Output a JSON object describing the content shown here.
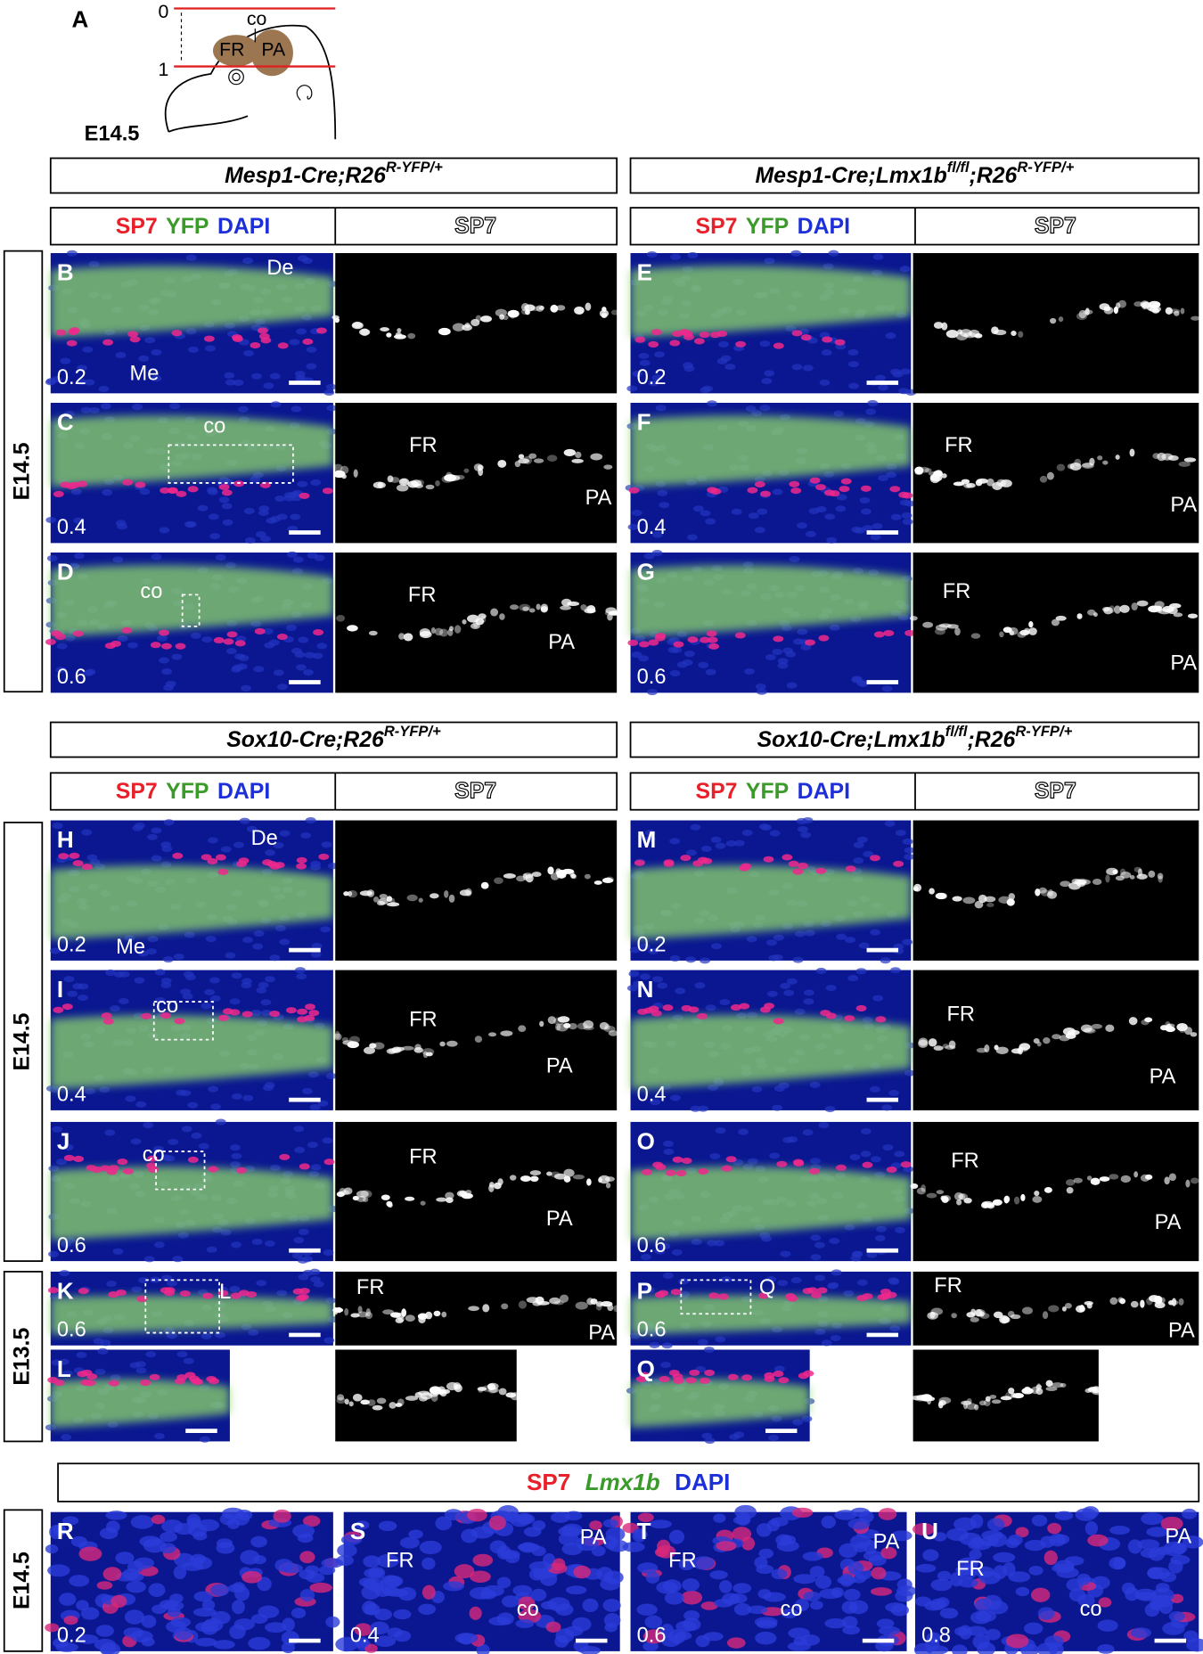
{
  "panel_a": {
    "letter": "A",
    "axis": [
      "0",
      "1"
    ],
    "labels": [
      "co",
      "FR",
      "PA"
    ],
    "stage": "E14.5"
  },
  "genotype_headers": [
    [
      {
        "text": "Mesp1-Cre;R26"
      },
      {
        "text": "R-YFP/+",
        "sup": true
      }
    ],
    [
      {
        "text": "Mesp1-Cre;Lmx1b"
      },
      {
        "text": "fl/fl",
        "sup": true
      },
      {
        "text": ";R26"
      },
      {
        "text": "R-YFP/+",
        "sup": true
      }
    ],
    [
      {
        "text": "Sox10-Cre;R26"
      },
      {
        "text": "R-YFP/+",
        "sup": true
      }
    ],
    [
      {
        "text": "Sox10-Cre;Lmx1b"
      },
      {
        "text": "fl/fl",
        "sup": true
      },
      {
        "text": ";R26"
      },
      {
        "text": "R-YFP/+",
        "sup": true
      }
    ]
  ],
  "stain_headers": {
    "merge": [
      "SP7",
      "YFP",
      "DAPI"
    ],
    "single": "SP7"
  },
  "row_labels": [
    "E14.5",
    "E14.5",
    "E13.5",
    "E14.5"
  ],
  "bottom_header": [
    "SP7",
    "Lmx1b",
    "DAPI"
  ],
  "panels": [
    {
      "letter": "B",
      "depth": "0.2",
      "left_labels": [
        "De",
        "Me"
      ]
    },
    {
      "letter": "C",
      "depth": "0.4",
      "left_labels": [
        "co"
      ],
      "right_labels": [
        "FR",
        "PA"
      ]
    },
    {
      "letter": "D",
      "depth": "0.6",
      "left_labels": [
        "co"
      ],
      "right_labels": [
        "FR",
        "PA"
      ]
    },
    {
      "letter": "E",
      "depth": "0.2"
    },
    {
      "letter": "F",
      "depth": "0.4",
      "right_labels": [
        "FR",
        "PA"
      ]
    },
    {
      "letter": "G",
      "depth": "0.6",
      "right_labels": [
        "FR",
        "PA"
      ]
    },
    {
      "letter": "H",
      "depth": "0.2",
      "left_labels": [
        "De",
        "Me"
      ]
    },
    {
      "letter": "I",
      "depth": "0.4",
      "left_labels": [
        "co"
      ],
      "right_labels": [
        "FR",
        "PA"
      ]
    },
    {
      "letter": "J",
      "depth": "0.6",
      "left_labels": [
        "co"
      ],
      "right_labels": [
        "FR",
        "PA"
      ]
    },
    {
      "letter": "K",
      "depth": "0.6",
      "left_labels": [
        "L"
      ],
      "right_labels": [
        "FR",
        "PA"
      ]
    },
    {
      "letter": "L"
    },
    {
      "letter": "M",
      "depth": "0.2"
    },
    {
      "letter": "N",
      "depth": "0.4",
      "right_labels": [
        "FR",
        "PA"
      ]
    },
    {
      "letter": "O",
      "depth": "0.6",
      "right_labels": [
        "FR",
        "PA"
      ]
    },
    {
      "letter": "P",
      "depth": "0.6",
      "left_labels": [
        "Q"
      ],
      "right_labels": [
        "FR",
        "PA"
      ]
    },
    {
      "letter": "Q"
    },
    {
      "letter": "R",
      "depth": "0.2"
    },
    {
      "letter": "S",
      "depth": "0.4",
      "left_labels": [
        "FR",
        "co",
        "PA"
      ]
    },
    {
      "letter": "T",
      "depth": "0.6",
      "left_labels": [
        "FR",
        "co",
        "PA"
      ]
    },
    {
      "letter": "U",
      "depth": "0.8",
      "left_labels": [
        "FR",
        "co",
        "PA"
      ]
    }
  ]
}
